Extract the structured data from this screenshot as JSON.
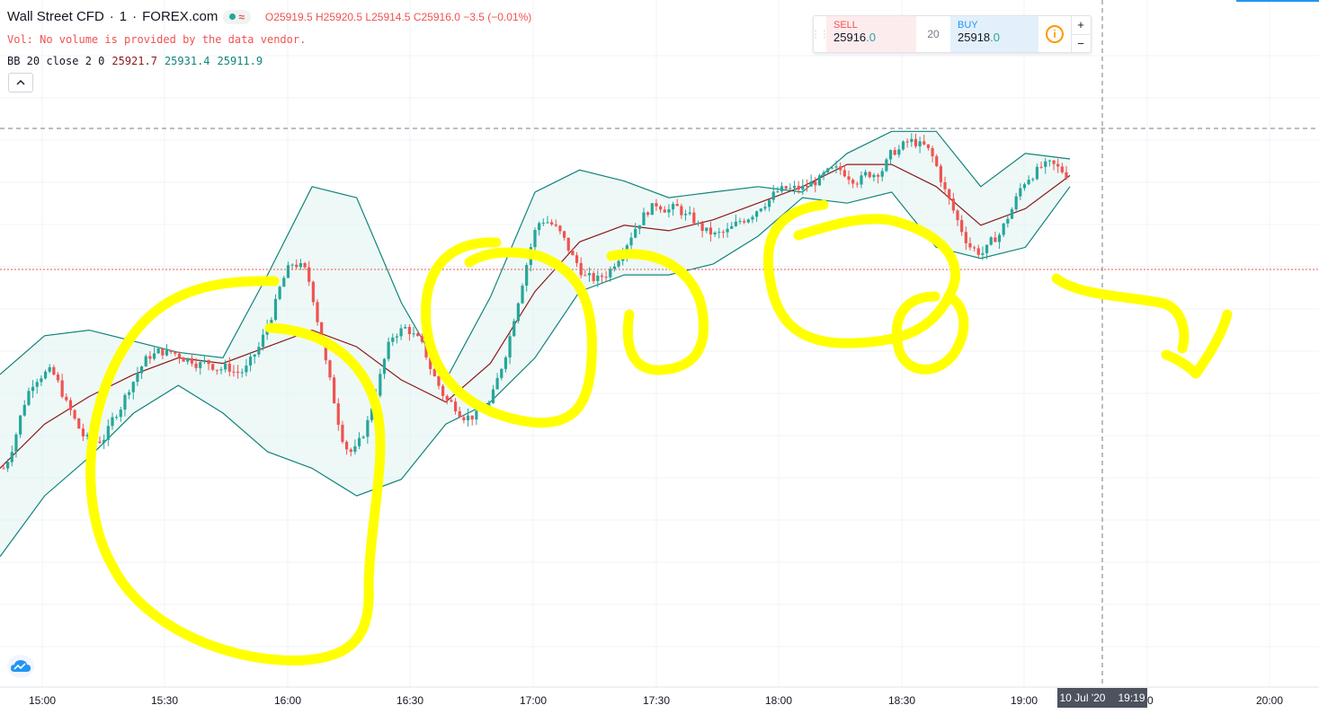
{
  "header": {
    "symbol": "Wall Street CFD",
    "interval": "1",
    "source": "FOREX.com",
    "badge_icon": "approx-icon",
    "open_label": "O",
    "open": "25919.5",
    "high_label": "H",
    "high": "25920.5",
    "low_label": "L",
    "low": "25914.5",
    "close_label": "C",
    "close": "25916.0",
    "change": "−3.5 (−0.01%)"
  },
  "volume_note": "Vol: No volume is provided by the data vendor.",
  "indicator": {
    "label": "BB 20 close 2 0",
    "basis": "25921.7",
    "upper": "25931.4",
    "lower": "25911.9"
  },
  "trade_panel": {
    "sell_label": "SELL",
    "sell_price_main": "25916",
    "sell_price_frac": ".0",
    "qty": "20",
    "buy_label": "BUY",
    "buy_price_main": "25918",
    "buy_price_frac": ".0",
    "info_icon": "i",
    "plus": "+",
    "minus": "−"
  },
  "crosshair_label": {
    "date": "10 Jul '20",
    "time": "19:19"
  },
  "colors": {
    "up": "#26a69a",
    "down": "#ef5350",
    "bb_line": "#10847a",
    "bb_basis": "#8b1a1a",
    "bb_fill": "#e0f2f1",
    "highlight": "#ffff00",
    "last_price_line": "#ef5350"
  },
  "chart_data": {
    "type": "candlestick",
    "x_tick_labels": [
      "15:00",
      "15:30",
      "16:00",
      "16:30",
      "17:00",
      "17:30",
      "18:00",
      "18:30",
      "19:00",
      "30",
      "20:00"
    ],
    "series": [
      {
        "name": "Bollinger upper",
        "values": [
          25897,
          25904,
          25905,
          25903,
          25901,
          25900,
          25915,
          25931,
          25929,
          25910,
          25896,
          25911,
          25930,
          25934,
          25932,
          25929,
          25930,
          25931,
          25930,
          25937,
          25941,
          25941,
          25931,
          25937,
          25936
        ]
      },
      {
        "name": "Bollinger basis",
        "values": [
          25880,
          25888,
          25893,
          25897,
          25900,
          25899,
          25902,
          25905,
          25902,
          25896,
          25892,
          25899,
          25912,
          25921,
          25924,
          25923,
          25925,
          25928,
          25931,
          25935,
          25935,
          25931,
          25924,
          25927,
          25933
        ]
      },
      {
        "name": "Bollinger lower",
        "values": [
          25864,
          25875,
          25882,
          25890,
          25895,
          25890,
          25883,
          25880,
          25875,
          25878,
          25888,
          25892,
          25900,
          25912,
          25915,
          25915,
          25917,
          25922,
          25929,
          25928,
          25930,
          25920,
          25918,
          25920,
          25931
        ]
      }
    ]
  }
}
